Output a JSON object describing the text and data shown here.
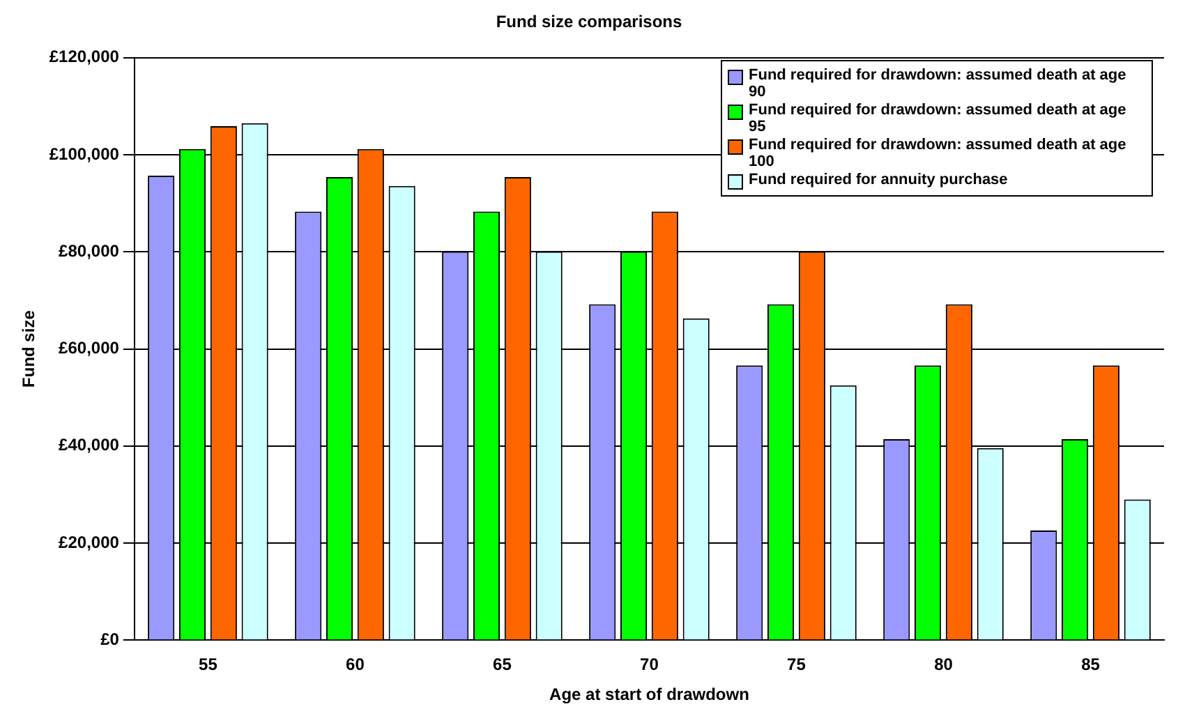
{
  "chart_data": {
    "type": "bar",
    "title": "Fund size comparisons",
    "xlabel": "Age at start of drawdown",
    "ylabel": "Fund size",
    "categories": [
      "55",
      "60",
      "65",
      "70",
      "75",
      "80",
      "85"
    ],
    "series": [
      {
        "name": "Fund required for drawdown: assumed death at age 90",
        "color": "#9999ff",
        "values": [
          95700,
          88300,
          80100,
          69200,
          56600,
          41400,
          22600
        ]
      },
      {
        "name": "Fund required for drawdown: assumed death at age 95",
        "color": "#00ff00",
        "values": [
          101200,
          95400,
          88300,
          80100,
          69200,
          56600,
          41400
        ]
      },
      {
        "name": "Fund required for drawdown: assumed death at age 100",
        "color": "#ff6600",
        "values": [
          105900,
          101200,
          95400,
          88300,
          80100,
          69200,
          56600
        ]
      },
      {
        "name": "Fund required for annuity purchase",
        "color": "#ccffff",
        "values": [
          106500,
          93600,
          80100,
          66300,
          52500,
          39600,
          29000
        ]
      }
    ],
    "ylim": [
      0,
      120000
    ],
    "yticks": [
      {
        "value": 0,
        "label": "£0"
      },
      {
        "value": 20000,
        "label": "£20,000"
      },
      {
        "value": 40000,
        "label": "£40,000"
      },
      {
        "value": 60000,
        "label": "£60,000"
      },
      {
        "value": 80000,
        "label": "£80,000"
      },
      {
        "value": 100000,
        "label": "£100,000"
      },
      {
        "value": 120000,
        "label": "£120,000"
      }
    ],
    "grid": "y",
    "legend": "top right"
  }
}
